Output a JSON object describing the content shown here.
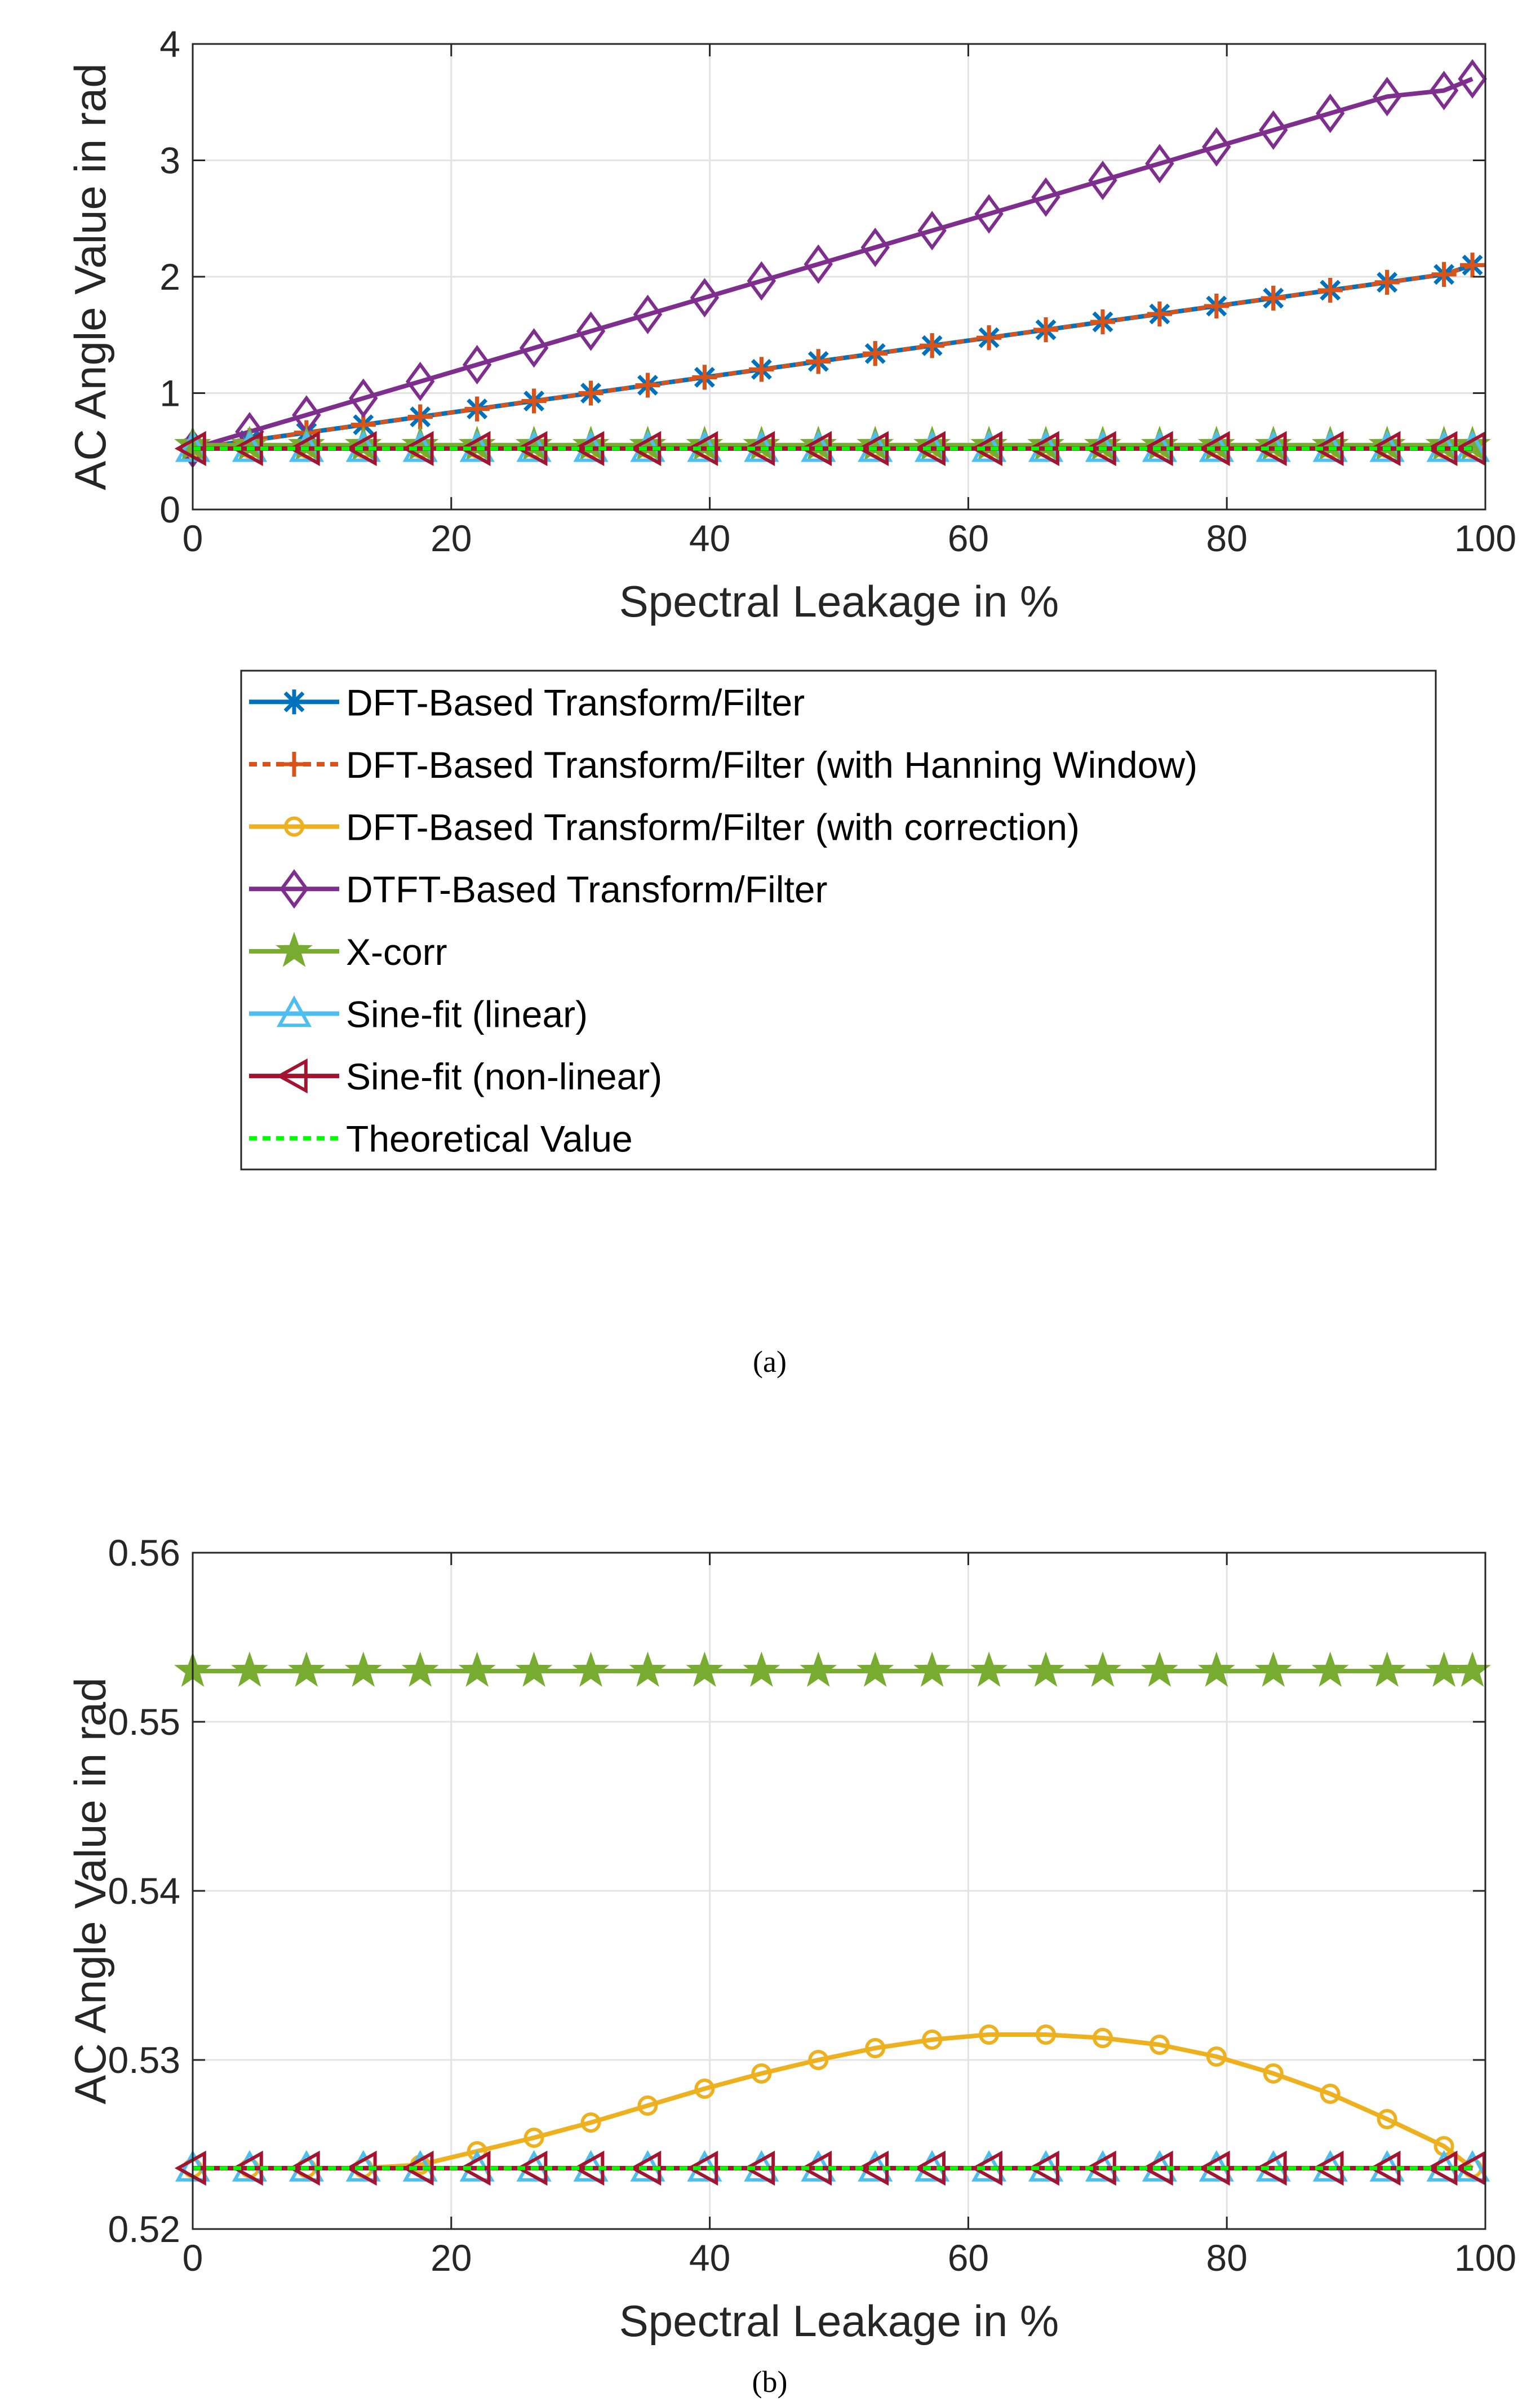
{
  "captions": {
    "a": "(a)",
    "b": "(b)"
  },
  "colors": {
    "axis": "#262626",
    "grid": "#e3e3e3",
    "dft": "#0072BD",
    "hanning": "#D95319",
    "correction": "#EDB120",
    "dtft": "#7E2F8E",
    "xcorr": "#77AC30",
    "sine_linear": "#4DBEEE",
    "sine_nonlinear": "#A2142F",
    "theoretical": "#00FF00"
  },
  "legend": {
    "entries": [
      "DFT-Based Transform/Filter",
      "DFT-Based Transform/Filter (with Hanning Window)",
      "DFT-Based Transform/Filter (with correction)",
      "DTFT-Based Transform/Filter",
      "X-corr",
      "Sine-fit (linear)",
      "Sine-fit (non-linear)",
      "Theoretical Value"
    ]
  },
  "chart_data": [
    {
      "id": "a",
      "type": "line",
      "title": "",
      "xlabel": "Spectral Leakage in %",
      "ylabel": "AC Angle Value in rad",
      "xlim": [
        0,
        100
      ],
      "ylim": [
        0,
        4
      ],
      "xticks": [
        0,
        20,
        40,
        60,
        80,
        100
      ],
      "yticks": [
        0,
        1,
        2,
        3,
        4
      ],
      "xtick_labels": [
        "0",
        "20",
        "40",
        "60",
        "80",
        "100"
      ],
      "ytick_labels": [
        "0",
        "1",
        "2",
        "3",
        "4"
      ],
      "grid": true,
      "x": [
        0,
        4.4,
        8.8,
        13.2,
        17.6,
        22,
        26.4,
        30.8,
        35.2,
        39.6,
        44,
        48.4,
        52.8,
        57.2,
        61.6,
        66,
        70.4,
        74.8,
        79.2,
        83.6,
        88,
        92.4,
        96.8,
        99
      ],
      "series": [
        {
          "name": "DFT-Based Transform/Filter",
          "color_key": "dft",
          "marker": "asterisk",
          "dash": "solid",
          "values": [
            0.524,
            0.592,
            0.66,
            0.728,
            0.796,
            0.864,
            0.932,
            1.0,
            1.068,
            1.136,
            1.204,
            1.272,
            1.34,
            1.408,
            1.476,
            1.544,
            1.612,
            1.68,
            1.748,
            1.816,
            1.884,
            1.952,
            2.02,
            2.1
          ]
        },
        {
          "name": "DFT-Based Transform/Filter (with Hanning Window)",
          "color_key": "hanning",
          "marker": "plus",
          "dash": "dotted",
          "values": [
            0.524,
            0.592,
            0.66,
            0.728,
            0.796,
            0.864,
            0.932,
            1.0,
            1.068,
            1.136,
            1.204,
            1.272,
            1.34,
            1.408,
            1.476,
            1.544,
            1.612,
            1.68,
            1.748,
            1.816,
            1.884,
            1.952,
            2.02,
            2.1
          ]
        },
        {
          "name": "DFT-Based Transform/Filter (with correction)",
          "color_key": "correction",
          "marker": "circle",
          "dash": "solid",
          "values": [
            0.524,
            0.524,
            0.524,
            0.524,
            0.524,
            0.525,
            0.525,
            0.526,
            0.527,
            0.528,
            0.529,
            0.53,
            0.531,
            0.531,
            0.532,
            0.532,
            0.531,
            0.531,
            0.53,
            0.529,
            0.528,
            0.527,
            0.525,
            0.524
          ]
        },
        {
          "name": "DTFT-Based Transform/Filter",
          "color_key": "dtft",
          "marker": "diamond",
          "dash": "solid",
          "values": [
            0.524,
            0.668,
            0.812,
            0.956,
            1.1,
            1.244,
            1.388,
            1.532,
            1.676,
            1.82,
            1.964,
            2.108,
            2.252,
            2.396,
            2.54,
            2.684,
            2.828,
            2.972,
            3.116,
            3.26,
            3.404,
            3.548,
            3.6,
            3.7
          ]
        },
        {
          "name": "X-corr",
          "color_key": "xcorr",
          "marker": "star",
          "dash": "solid",
          "values": [
            0.553,
            0.553,
            0.553,
            0.553,
            0.553,
            0.553,
            0.553,
            0.553,
            0.553,
            0.553,
            0.553,
            0.553,
            0.553,
            0.553,
            0.553,
            0.553,
            0.553,
            0.553,
            0.553,
            0.553,
            0.553,
            0.553,
            0.553,
            0.553
          ]
        },
        {
          "name": "Sine-fit (linear)",
          "color_key": "sine_linear",
          "marker": "triangle-up",
          "dash": "solid",
          "values": [
            0.5236,
            0.5236,
            0.5236,
            0.5236,
            0.5236,
            0.5236,
            0.5236,
            0.5236,
            0.5236,
            0.5236,
            0.5236,
            0.5236,
            0.5236,
            0.5236,
            0.5236,
            0.5236,
            0.5236,
            0.5236,
            0.5236,
            0.5236,
            0.5236,
            0.5236,
            0.5236,
            0.5236
          ]
        },
        {
          "name": "Sine-fit (non-linear)",
          "color_key": "sine_nonlinear",
          "marker": "triangle-left",
          "dash": "solid",
          "values": [
            0.5236,
            0.5236,
            0.5236,
            0.5236,
            0.5236,
            0.5236,
            0.5236,
            0.5236,
            0.5236,
            0.5236,
            0.5236,
            0.5236,
            0.5236,
            0.5236,
            0.5236,
            0.5236,
            0.5236,
            0.5236,
            0.5236,
            0.5236,
            0.5236,
            0.5236,
            0.5236,
            0.5236
          ]
        },
        {
          "name": "Theoretical Value",
          "color_key": "theoretical",
          "marker": "none",
          "dash": "dotted",
          "values": [
            0.5236,
            0.5236,
            0.5236,
            0.5236,
            0.5236,
            0.5236,
            0.5236,
            0.5236,
            0.5236,
            0.5236,
            0.5236,
            0.5236,
            0.5236,
            0.5236,
            0.5236,
            0.5236,
            0.5236,
            0.5236,
            0.5236,
            0.5236,
            0.5236,
            0.5236,
            0.5236,
            0.5236
          ]
        }
      ]
    },
    {
      "id": "b",
      "type": "line",
      "title": "",
      "xlabel": "Spectral Leakage in %",
      "ylabel": "AC Angle Value in rad",
      "xlim": [
        0,
        100
      ],
      "ylim": [
        0.52,
        0.56
      ],
      "xticks": [
        0,
        20,
        40,
        60,
        80,
        100
      ],
      "yticks": [
        0.52,
        0.53,
        0.54,
        0.55,
        0.56
      ],
      "xtick_labels": [
        "0",
        "20",
        "40",
        "60",
        "80",
        "100"
      ],
      "ytick_labels": [
        "0.52",
        "0.53",
        "0.54",
        "0.55",
        "0.56"
      ],
      "grid": true,
      "x": [
        0,
        4.4,
        8.8,
        13.2,
        17.6,
        22,
        26.4,
        30.8,
        35.2,
        39.6,
        44,
        48.4,
        52.8,
        57.2,
        61.6,
        66,
        70.4,
        74.8,
        79.2,
        83.6,
        88,
        92.4,
        96.8,
        99
      ],
      "series": [
        {
          "name": "DFT-Based Transform/Filter (with correction)",
          "color_key": "correction",
          "marker": "circle",
          "dash": "solid",
          "values": [
            0.5236,
            0.5236,
            0.5236,
            0.5236,
            0.5238,
            0.5246,
            0.5254,
            0.5263,
            0.5273,
            0.5283,
            0.5292,
            0.53,
            0.5307,
            0.5312,
            0.5315,
            0.5315,
            0.5313,
            0.5309,
            0.5302,
            0.5292,
            0.528,
            0.5265,
            0.5249,
            0.5236
          ]
        },
        {
          "name": "X-corr",
          "color_key": "xcorr",
          "marker": "star",
          "dash": "solid",
          "values": [
            0.553,
            0.553,
            0.553,
            0.553,
            0.553,
            0.553,
            0.553,
            0.553,
            0.553,
            0.553,
            0.553,
            0.553,
            0.553,
            0.553,
            0.553,
            0.553,
            0.553,
            0.553,
            0.553,
            0.553,
            0.553,
            0.553,
            0.553,
            0.553
          ]
        },
        {
          "name": "Sine-fit (linear)",
          "color_key": "sine_linear",
          "marker": "triangle-up",
          "dash": "solid",
          "values": [
            0.5236,
            0.5236,
            0.5236,
            0.5236,
            0.5236,
            0.5236,
            0.5236,
            0.5236,
            0.5236,
            0.5236,
            0.5236,
            0.5236,
            0.5236,
            0.5236,
            0.5236,
            0.5236,
            0.5236,
            0.5236,
            0.5236,
            0.5236,
            0.5236,
            0.5236,
            0.5236,
            0.5236
          ]
        },
        {
          "name": "Sine-fit (non-linear)",
          "color_key": "sine_nonlinear",
          "marker": "triangle-left",
          "dash": "solid",
          "values": [
            0.5236,
            0.5236,
            0.5236,
            0.5236,
            0.5236,
            0.5236,
            0.5236,
            0.5236,
            0.5236,
            0.5236,
            0.5236,
            0.5236,
            0.5236,
            0.5236,
            0.5236,
            0.5236,
            0.5236,
            0.5236,
            0.5236,
            0.5236,
            0.5236,
            0.5236,
            0.5236,
            0.5236
          ]
        },
        {
          "name": "Theoretical Value",
          "color_key": "theoretical",
          "marker": "none",
          "dash": "dotted",
          "values": [
            0.5236,
            0.5236,
            0.5236,
            0.5236,
            0.5236,
            0.5236,
            0.5236,
            0.5236,
            0.5236,
            0.5236,
            0.5236,
            0.5236,
            0.5236,
            0.5236,
            0.5236,
            0.5236,
            0.5236,
            0.5236,
            0.5236,
            0.5236,
            0.5236,
            0.5236,
            0.5236,
            0.5236
          ]
        }
      ]
    }
  ]
}
